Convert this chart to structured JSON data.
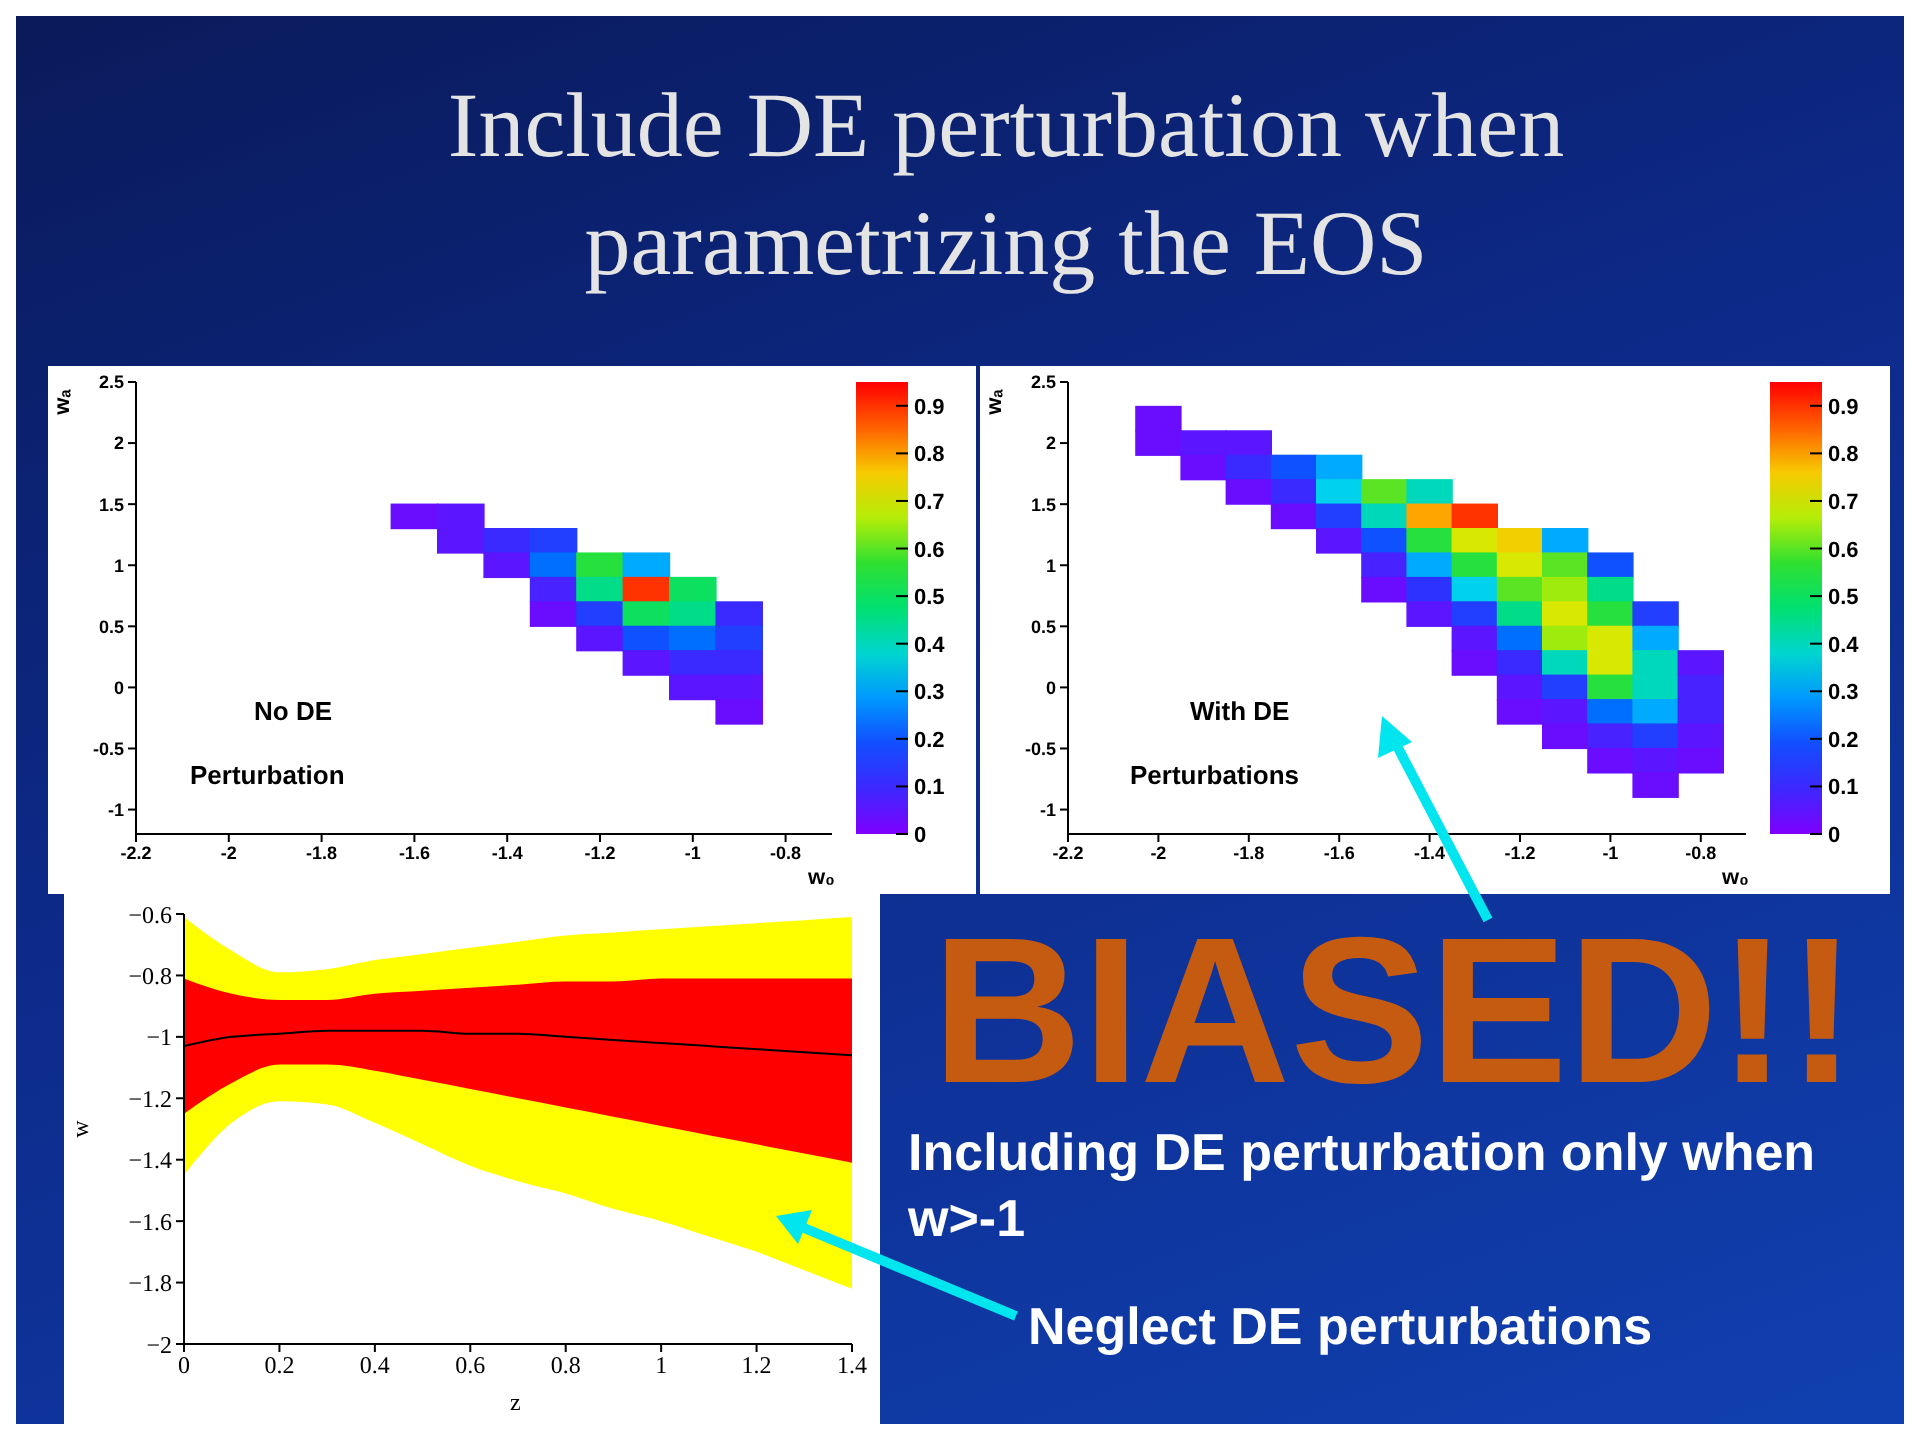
{
  "chart_data": [
    {
      "type": "scatter",
      "title": "Include DE perturbation when parametrizing the EOS",
      "xlabel": "w₀",
      "ylabel": "wₐ",
      "marker": "square",
      "xlim": [
        -2.2,
        -0.7
      ],
      "ylim": [
        -1.2,
        2.5
      ],
      "xticks": [
        -2.2,
        -2,
        -1.8,
        -1.6,
        -1.4,
        -1.2,
        -1,
        -0.8
      ],
      "yticks": [
        -1,
        -0.5,
        0,
        0.5,
        1,
        1.5,
        2,
        2.5
      ],
      "clim": [
        0,
        0.95
      ],
      "cticks": [
        0,
        0.1,
        0.2,
        0.3,
        0.4,
        0.5,
        0.6,
        0.7,
        0.8,
        0.9
      ],
      "x": [
        -1.6,
        -1.5,
        -1.5,
        -1.4,
        -1.4,
        -1.3,
        -1.3,
        -1.3,
        -1.3,
        -1.2,
        -1.2,
        -1.2,
        -1.2,
        -1.1,
        -1.1,
        -1.1,
        -1.1,
        -1.1,
        -1,
        -1,
        -1,
        -1,
        -1,
        -0.9,
        -0.9,
        -0.9,
        -0.9,
        -0.9
      ],
      "values": [
        1.4,
        1.4,
        1.2,
        1.2,
        1,
        1.2,
        1,
        0.8,
        0.6,
        1,
        0.8,
        0.6,
        0.4,
        1,
        0.8,
        0.6,
        0.4,
        0.2,
        0.8,
        0.6,
        0.4,
        0.2,
        0,
        0.6,
        0.4,
        0.2,
        0,
        -0.2
      ],
      "cvalues": [
        0.03,
        0.05,
        0.05,
        0.1,
        0.05,
        0.15,
        0.25,
        0.08,
        0.03,
        0.55,
        0.45,
        0.15,
        0.05,
        0.3,
        0.9,
        0.5,
        0.2,
        0.05,
        0.5,
        0.45,
        0.25,
        0.1,
        0.05,
        0.1,
        0.15,
        0.1,
        0.05,
        0.03
      ],
      "annotations": [
        "No DE",
        "Perturbation"
      ]
    },
    {
      "type": "scatter",
      "xlabel": "w₀",
      "ylabel": "wₐ",
      "marker": "square",
      "xlim": [
        -2.2,
        -0.7
      ],
      "ylim": [
        -1.2,
        2.5
      ],
      "xticks": [
        -2.2,
        -2,
        -1.8,
        -1.6,
        -1.4,
        -1.2,
        -1,
        -0.8
      ],
      "yticks": [
        -1,
        -0.5,
        0,
        0.5,
        1,
        1.5,
        2,
        2.5
      ],
      "clim": [
        0,
        0.95
      ],
      "cticks": [
        0,
        0.1,
        0.2,
        0.3,
        0.4,
        0.5,
        0.6,
        0.7,
        0.8,
        0.9
      ],
      "x": [
        -2,
        -2,
        -1.9,
        -1.9,
        -1.8,
        -1.8,
        -1.8,
        -1.7,
        -1.7,
        -1.7,
        -1.6,
        -1.6,
        -1.6,
        -1.6,
        -1.5,
        -1.5,
        -1.5,
        -1.5,
        -1.5,
        -1.4,
        -1.4,
        -1.4,
        -1.4,
        -1.4,
        -1.4,
        -1.3,
        -1.3,
        -1.3,
        -1.3,
        -1.3,
        -1.3,
        -1.3,
        -1.2,
        -1.2,
        -1.2,
        -1.2,
        -1.2,
        -1.2,
        -1.2,
        -1.2,
        -1.1,
        -1.1,
        -1.1,
        -1.1,
        -1.1,
        -1.1,
        -1.1,
        -1.1,
        -1.1,
        -1,
        -1,
        -1,
        -1,
        -1,
        -1,
        -1,
        -1,
        -1,
        -0.9,
        -0.9,
        -0.9,
        -0.9,
        -0.9,
        -0.9,
        -0.9,
        -0.9,
        -0.8,
        -0.8,
        -0.8,
        -0.8,
        -0.8
      ],
      "values": [
        2.2,
        2,
        2,
        1.8,
        2,
        1.8,
        1.6,
        1.8,
        1.6,
        1.4,
        1.8,
        1.6,
        1.4,
        1.2,
        1.6,
        1.4,
        1.2,
        1,
        0.8,
        1.6,
        1.4,
        1.2,
        1,
        0.8,
        0.6,
        1.4,
        1.2,
        1,
        0.8,
        0.6,
        0.4,
        0.2,
        1.2,
        1,
        0.8,
        0.6,
        0.4,
        0.2,
        0,
        -0.2,
        1.2,
        1,
        0.8,
        0.6,
        0.4,
        0.2,
        0,
        -0.2,
        -0.4,
        1,
        0.8,
        0.6,
        0.4,
        0.2,
        0,
        -0.2,
        -0.4,
        -0.6,
        0.6,
        0.4,
        0.2,
        0,
        -0.2,
        -0.4,
        -0.6,
        -0.8,
        0.2,
        0,
        -0.2,
        -0.4,
        -0.6
      ],
      "cvalues": [
        0.03,
        0.03,
        0.05,
        0.03,
        0.05,
        0.1,
        0.03,
        0.2,
        0.1,
        0.03,
        0.3,
        0.35,
        0.15,
        0.05,
        0.6,
        0.4,
        0.2,
        0.08,
        0.03,
        0.4,
        0.8,
        0.55,
        0.3,
        0.12,
        0.05,
        0.9,
        0.7,
        0.55,
        0.35,
        0.15,
        0.05,
        0.03,
        0.75,
        0.7,
        0.6,
        0.45,
        0.25,
        0.1,
        0.05,
        0.03,
        0.3,
        0.6,
        0.65,
        0.7,
        0.65,
        0.4,
        0.15,
        0.05,
        0.03,
        0.2,
        0.45,
        0.55,
        0.7,
        0.7,
        0.55,
        0.25,
        0.08,
        0.03,
        0.15,
        0.3,
        0.4,
        0.4,
        0.3,
        0.15,
        0.05,
        0.03,
        0.05,
        0.08,
        0.08,
        0.05,
        0.03
      ],
      "annotations": [
        "With DE",
        "Perturbations",
        "BIASED!!",
        "Including DE perturbation only when w>-1"
      ]
    },
    {
      "type": "line",
      "xlabel": "z",
      "ylabel": "w",
      "xlim": [
        0,
        1.4
      ],
      "ylim": [
        -2,
        -0.6
      ],
      "xticks": [
        0,
        0.2,
        0.4,
        0.6,
        0.8,
        1,
        1.2,
        1.4
      ],
      "yticks": [
        -2,
        -1.8,
        -1.6,
        -1.4,
        -1.2,
        -1,
        -0.8,
        -0.6
      ],
      "x": [
        0,
        0.1,
        0.2,
        0.3,
        0.4,
        0.5,
        0.6,
        0.7,
        0.8,
        0.9,
        1,
        1.1,
        1.2,
        1.3,
        1.4
      ],
      "series": [
        {
          "color": "#ffff00",
          "values": [
            null,
            null,
            null,
            null,
            null,
            null,
            null,
            null,
            null,
            null,
            null,
            null,
            null,
            null,
            null
          ],
          "lower": [
            -1.45,
            -1.28,
            -1.21,
            -1.22,
            -1.28,
            -1.35,
            -1.42,
            -1.47,
            -1.51,
            -1.56,
            -1.6,
            -1.65,
            -1.7,
            -1.76,
            -1.82
          ],
          "upper": [
            -0.61,
            -0.72,
            -0.79,
            -0.78,
            -0.75,
            -0.73,
            -0.71,
            -0.69,
            -0.67,
            -0.66,
            -0.65,
            -0.64,
            -0.63,
            -0.62,
            -0.61
          ]
        },
        {
          "color": "#ff0000",
          "values": [
            null,
            null,
            null,
            null,
            null,
            null,
            null,
            null,
            null,
            null,
            null,
            null,
            null,
            null,
            null
          ],
          "lower": [
            -1.25,
            -1.15,
            -1.09,
            -1.09,
            -1.11,
            -1.14,
            -1.17,
            -1.2,
            -1.23,
            -1.26,
            -1.29,
            -1.32,
            -1.35,
            -1.38,
            -1.41
          ],
          "upper": [
            -0.81,
            -0.86,
            -0.88,
            -0.88,
            -0.86,
            -0.85,
            -0.84,
            -0.83,
            -0.82,
            -0.82,
            -0.81,
            -0.81,
            -0.81,
            -0.81,
            -0.81
          ]
        },
        {
          "color": "#000000",
          "values": [
            -1.03,
            -1,
            -0.99,
            -0.98,
            -0.98,
            -0.98,
            -0.99,
            -0.99,
            -1,
            -1.01,
            -1.02,
            -1.03,
            -1.04,
            -1.05,
            -1.06
          ]
        }
      ],
      "annotations": [
        "Neglect DE perturbations"
      ]
    }
  ]
}
